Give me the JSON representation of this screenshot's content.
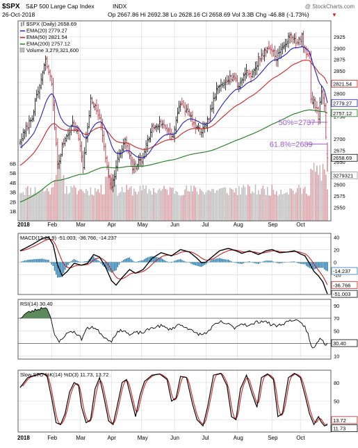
{
  "header": {
    "ticker": "$SPX",
    "description": "S&P 500 Large Cap Index",
    "exchange": "INDX",
    "watermark": "@ StockCharts.com",
    "date": "26-Oct-2018",
    "quote": "Op 2667.86  Hi 2692.38  Lo 2628.16  Cl 2658.69  Vol 3.3B  Chg -46.88 (-1.73%)",
    "down_arrow": "▼"
  },
  "colors": {
    "price_bar": "#000000",
    "ema20": "#1f1fbf",
    "ema50": "#cc2222",
    "ema200": "#1a7a1a",
    "volume_up": "#bfbfbf",
    "volume_down": "#d9a0a6",
    "macd_line": "#000000",
    "macd_signal": "#cc2222",
    "macd_hist": "#2a7fb0",
    "fib": "#9b59d6",
    "rsi_fill": "#5b8a5b",
    "grid": "#d8d8d8"
  },
  "chart_data": [
    {
      "type": "line",
      "panel": "price",
      "legend": [
        {
          "name": "$SPX (Daily) 2658.69",
          "icon": "bars"
        },
        {
          "name": "EMA(20) 2779.27",
          "icon": "ema20"
        },
        {
          "name": "EMA(50) 2821.54",
          "icon": "ema50"
        },
        {
          "name": "EMA(200) 2757.12",
          "icon": "ema200"
        },
        {
          "name": "Volume 3,279,321,600",
          "icon": "volume"
        }
      ],
      "x_months": [
        {
          "label": "2018",
          "i": 0
        },
        {
          "label": "Feb",
          "i": 21
        },
        {
          "label": "Mar",
          "i": 40
        },
        {
          "label": "Apr",
          "i": 61
        },
        {
          "label": "May",
          "i": 81
        },
        {
          "label": "Jun",
          "i": 103
        },
        {
          "label": "Jul",
          "i": 124
        },
        {
          "label": "Aug",
          "i": 145
        },
        {
          "label": "Sep",
          "i": 168
        },
        {
          "label": "Oct",
          "i": 187
        }
      ],
      "ylim": [
        2520,
        2960
      ],
      "y_ticks": [
        2550,
        2575,
        2600,
        2625,
        2650,
        2675,
        2700,
        2725,
        2750,
        2775,
        2800,
        2825,
        2850,
        2875,
        2900,
        2925
      ],
      "y_tick_labels": [
        "2550",
        "2575",
        "2600",
        "2625",
        "2650",
        "2675",
        "2700",
        "",
        "2750",
        "",
        "2800",
        "",
        "2850",
        "2875",
        "2900",
        "2925"
      ],
      "close_anchors": [
        [
          0,
          2695
        ],
        [
          8,
          2750
        ],
        [
          17,
          2872
        ],
        [
          21,
          2822
        ],
        [
          25,
          2640
        ],
        [
          29,
          2695
        ],
        [
          35,
          2733
        ],
        [
          39,
          2705
        ],
        [
          42,
          2640
        ],
        [
          47,
          2785
        ],
        [
          53,
          2750
        ],
        [
          58,
          2640
        ],
        [
          61,
          2590
        ],
        [
          65,
          2655
        ],
        [
          70,
          2695
        ],
        [
          75,
          2635
        ],
        [
          81,
          2655
        ],
        [
          88,
          2725
        ],
        [
          94,
          2735
        ],
        [
          102,
          2708
        ],
        [
          107,
          2780
        ],
        [
          113,
          2752
        ],
        [
          118,
          2720
        ],
        [
          121,
          2718
        ],
        [
          124,
          2727
        ],
        [
          131,
          2805
        ],
        [
          137,
          2832
        ],
        [
          142,
          2838
        ],
        [
          146,
          2815
        ],
        [
          150,
          2850
        ],
        [
          155,
          2840
        ],
        [
          159,
          2875
        ],
        [
          164,
          2896
        ],
        [
          167,
          2901
        ],
        [
          171,
          2880
        ],
        [
          176,
          2905
        ],
        [
          181,
          2930
        ],
        [
          185,
          2912
        ],
        [
          188,
          2924
        ],
        [
          190,
          2894
        ],
        [
          193,
          2880
        ],
        [
          194,
          2790
        ],
        [
          198,
          2770
        ],
        [
          199,
          2750
        ],
        [
          201,
          2810
        ],
        [
          203,
          2768
        ],
        [
          204,
          2705
        ],
        [
          205,
          2658
        ]
      ],
      "volume_levels": {
        "label_values": [
          "1B",
          "2B",
          "3B",
          "4B",
          "5B",
          "6B"
        ],
        "max_b": 6.9
      },
      "ema_last": {
        "ema20": 2779.27,
        "ema50": 2821.54,
        "ema200": 2757.12
      },
      "last_tags": [
        {
          "label": "2821.54",
          "value": 2821.54,
          "series": "ema50"
        },
        {
          "label": "2779.27",
          "value": 2779.27,
          "series": "ema20"
        },
        {
          "label": "2757.12",
          "value": 2757.12,
          "series": "ema200"
        },
        {
          "label": "2658.69",
          "value": 2658.69,
          "series": "price"
        },
        {
          "label": "3279321",
          "value": 2620,
          "series": "volume"
        }
      ],
      "annotations": [
        {
          "text": "50%=2737",
          "value": 2737,
          "x_i": 177
        },
        {
          "text": "61.8%=2689",
          "value": 2689,
          "x_i": 171
        }
      ],
      "fib_lines": [
        {
          "value": 2737,
          "from_i": 191,
          "to_i": 205
        },
        {
          "value": 2689,
          "from_i": 191,
          "to_i": 205
        }
      ]
    },
    {
      "type": "line",
      "panel": "macd",
      "legend": [
        {
          "name": "MACD(12,26,9) -51.003, -36.766, -14.237"
        }
      ],
      "ylim": [
        -52,
        46
      ],
      "y_ticks": [
        -20,
        0,
        20,
        40
      ],
      "y_tick_labels": [
        "-20",
        "0",
        "20",
        "40"
      ],
      "macd_anchors": [
        [
          0,
          18
        ],
        [
          8,
          28
        ],
        [
          15,
          38
        ],
        [
          19,
          40
        ],
        [
          22,
          28
        ],
        [
          25,
          -5
        ],
        [
          28,
          -22
        ],
        [
          31,
          -16
        ],
        [
          36,
          -2
        ],
        [
          41,
          -5
        ],
        [
          45,
          -2
        ],
        [
          49,
          12
        ],
        [
          53,
          8
        ],
        [
          57,
          -8
        ],
        [
          61,
          -30
        ],
        [
          64,
          -37
        ],
        [
          68,
          -25
        ],
        [
          73,
          -12
        ],
        [
          77,
          -18
        ],
        [
          82,
          -12
        ],
        [
          88,
          6
        ],
        [
          94,
          15
        ],
        [
          101,
          10
        ],
        [
          107,
          20
        ],
        [
          113,
          16
        ],
        [
          118,
          6
        ],
        [
          121,
          -1
        ],
        [
          124,
          0
        ],
        [
          128,
          8
        ],
        [
          133,
          18
        ],
        [
          139,
          22
        ],
        [
          144,
          18
        ],
        [
          148,
          14
        ],
        [
          153,
          18
        ],
        [
          159,
          12
        ],
        [
          164,
          18
        ],
        [
          168,
          20
        ],
        [
          173,
          15
        ],
        [
          178,
          16
        ],
        [
          183,
          18
        ],
        [
          188,
          12
        ],
        [
          190,
          10
        ],
        [
          193,
          -2
        ],
        [
          196,
          -15
        ],
        [
          199,
          -22
        ],
        [
          202,
          -32
        ],
        [
          204,
          -45
        ],
        [
          205,
          -51
        ]
      ],
      "last_tags": [
        {
          "label": "-14.237",
          "value": -14.237,
          "series": "hist"
        },
        {
          "label": "-36.766",
          "value": -36.766,
          "series": "signal"
        },
        {
          "label": "-51.003",
          "value": -51.003,
          "series": "macd"
        }
      ]
    },
    {
      "type": "line",
      "panel": "rsi",
      "legend": [
        {
          "name": "RSI(14) 30.40"
        }
      ],
      "ylim": [
        5,
        100
      ],
      "y_ticks": [
        10,
        30,
        50,
        70,
        90
      ],
      "y_tick_labels": [
        "10",
        "30",
        "50",
        "70",
        "90"
      ],
      "overbought": 70,
      "oversold": 30,
      "rsi_anchors": [
        [
          0,
          70
        ],
        [
          4,
          78
        ],
        [
          9,
          82
        ],
        [
          13,
          85
        ],
        [
          17,
          88
        ],
        [
          20,
          76
        ],
        [
          23,
          42
        ],
        [
          26,
          32
        ],
        [
          29,
          41
        ],
        [
          34,
          50
        ],
        [
          38,
          45
        ],
        [
          41,
          37
        ],
        [
          44,
          52
        ],
        [
          48,
          57
        ],
        [
          53,
          48
        ],
        [
          57,
          38
        ],
        [
          61,
          34
        ],
        [
          64,
          46
        ],
        [
          69,
          52
        ],
        [
          73,
          43
        ],
        [
          77,
          47
        ],
        [
          82,
          47
        ],
        [
          88,
          55
        ],
        [
          94,
          58
        ],
        [
          100,
          52
        ],
        [
          106,
          60
        ],
        [
          111,
          56
        ],
        [
          116,
          47
        ],
        [
          121,
          44
        ],
        [
          124,
          46
        ],
        [
          129,
          58
        ],
        [
          134,
          64
        ],
        [
          139,
          60
        ],
        [
          143,
          55
        ],
        [
          148,
          62
        ],
        [
          153,
          58
        ],
        [
          158,
          64
        ],
        [
          163,
          66
        ],
        [
          167,
          60
        ],
        [
          172,
          58
        ],
        [
          177,
          63
        ],
        [
          182,
          68
        ],
        [
          187,
          62
        ],
        [
          190,
          57
        ],
        [
          192,
          45
        ],
        [
          194,
          26
        ],
        [
          196,
          22
        ],
        [
          198,
          30
        ],
        [
          200,
          40
        ],
        [
          202,
          33
        ],
        [
          204,
          28
        ],
        [
          205,
          30.4
        ]
      ],
      "last_tags": [
        {
          "label": "30.40",
          "value": 30.4,
          "series": "rsi"
        }
      ]
    },
    {
      "type": "line",
      "panel": "stochastic",
      "legend": [
        {
          "name": "Slow STO %K(14) %D(3) 11.73, 13.72"
        }
      ],
      "ylim": [
        0,
        100
      ],
      "y_ticks": [
        20,
        50,
        80
      ],
      "y_tick_labels": [
        "20",
        "50",
        "80"
      ],
      "k_anchors": [
        [
          0,
          72
        ],
        [
          5,
          88
        ],
        [
          10,
          92
        ],
        [
          15,
          95
        ],
        [
          18,
          90
        ],
        [
          21,
          55
        ],
        [
          24,
          15
        ],
        [
          27,
          12
        ],
        [
          30,
          30
        ],
        [
          33,
          65
        ],
        [
          36,
          80
        ],
        [
          39,
          75
        ],
        [
          41,
          40
        ],
        [
          44,
          15
        ],
        [
          47,
          20
        ],
        [
          50,
          70
        ],
        [
          53,
          88
        ],
        [
          56,
          55
        ],
        [
          59,
          18
        ],
        [
          62,
          12
        ],
        [
          65,
          45
        ],
        [
          68,
          80
        ],
        [
          71,
          85
        ],
        [
          74,
          55
        ],
        [
          77,
          25
        ],
        [
          80,
          60
        ],
        [
          83,
          82
        ],
        [
          88,
          92
        ],
        [
          93,
          94
        ],
        [
          98,
          85
        ],
        [
          101,
          50
        ],
        [
          104,
          55
        ],
        [
          107,
          90
        ],
        [
          111,
          88
        ],
        [
          115,
          45
        ],
        [
          118,
          20
        ],
        [
          122,
          10
        ],
        [
          125,
          40
        ],
        [
          129,
          92
        ],
        [
          134,
          95
        ],
        [
          138,
          75
        ],
        [
          141,
          25
        ],
        [
          144,
          20
        ],
        [
          147,
          70
        ],
        [
          151,
          92
        ],
        [
          155,
          60
        ],
        [
          158,
          40
        ],
        [
          161,
          88
        ],
        [
          165,
          94
        ],
        [
          169,
          85
        ],
        [
          172,
          25
        ],
        [
          175,
          30
        ],
        [
          179,
          88
        ],
        [
          183,
          95
        ],
        [
          187,
          88
        ],
        [
          190,
          60
        ],
        [
          193,
          30
        ],
        [
          196,
          12
        ],
        [
          199,
          25
        ],
        [
          201,
          16
        ],
        [
          203,
          10
        ],
        [
          205,
          11.73
        ]
      ],
      "last_tags": [
        {
          "label": "13.72",
          "value": 13.72,
          "series": "d"
        },
        {
          "label": "11.73",
          "value": 11.73,
          "series": "k"
        }
      ]
    }
  ]
}
